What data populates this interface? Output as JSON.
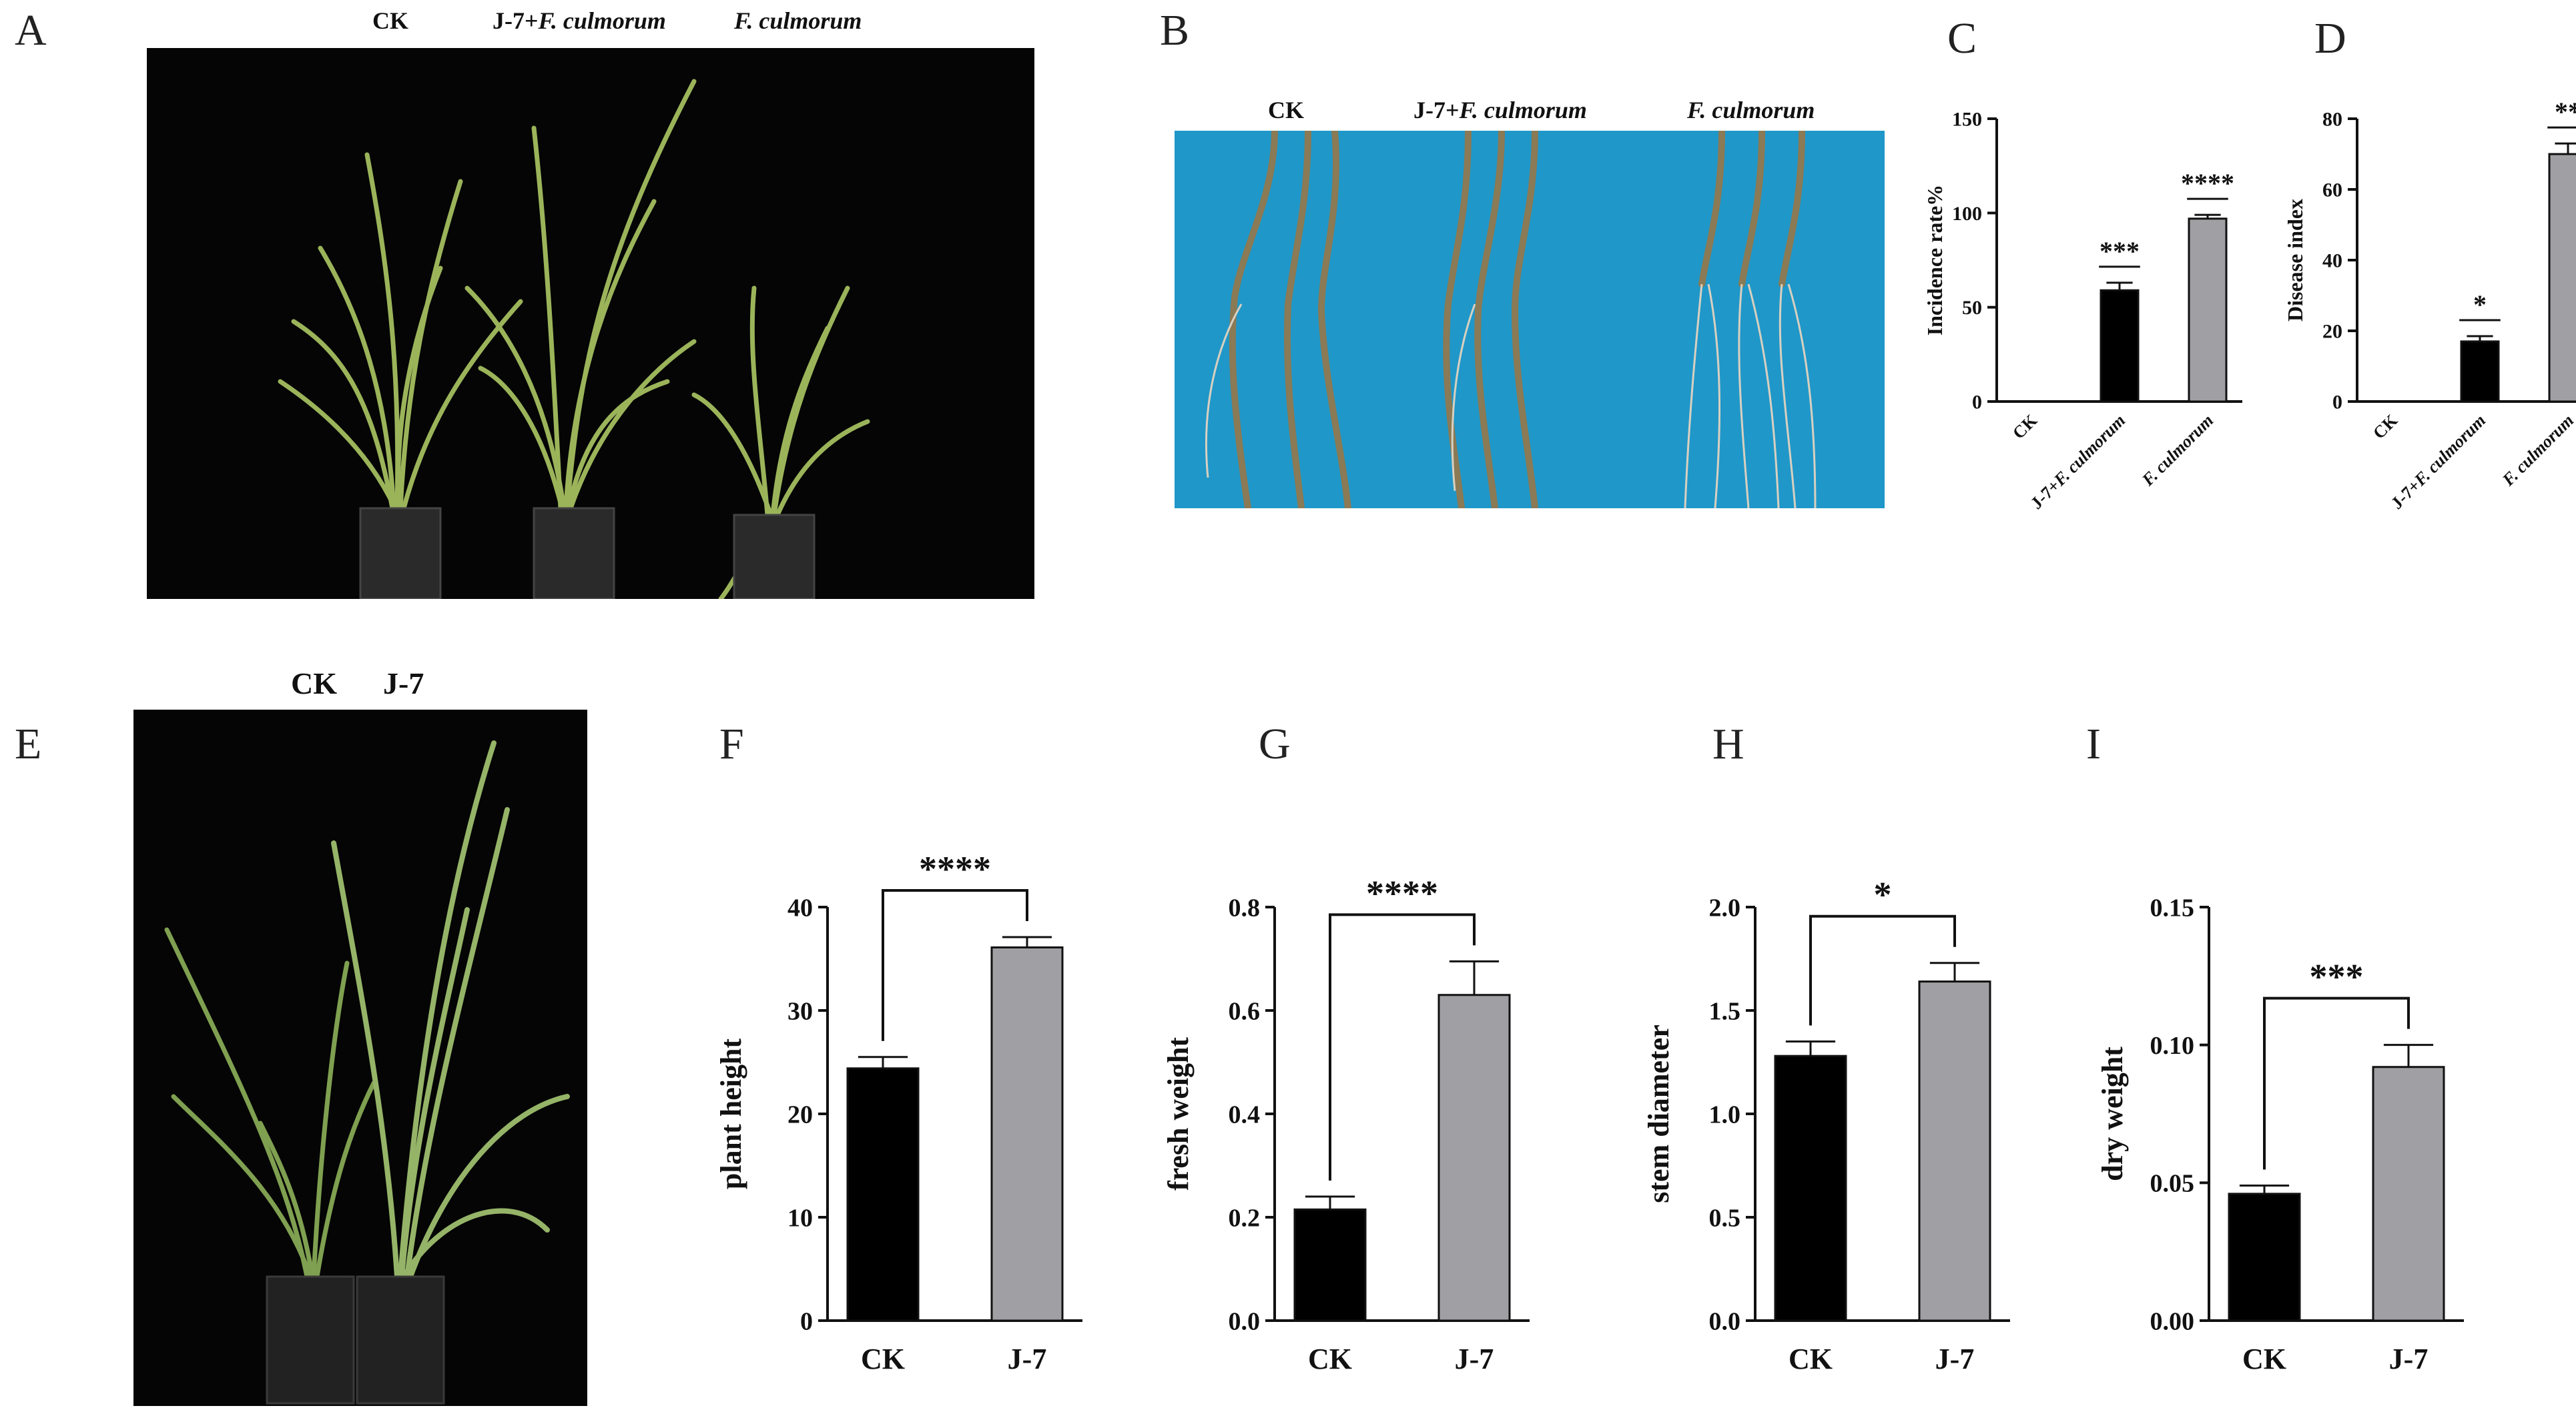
{
  "panels": {
    "A": "A",
    "B": "B",
    "C": "C",
    "D": "D",
    "E": "E",
    "F": "F",
    "G": "G",
    "H": "H",
    "I": "I"
  },
  "photoA": {
    "labels": [
      "CK",
      "J-7+",
      "F. culmorum",
      "F. culmorum"
    ]
  },
  "photoB": {
    "labels": [
      "CK",
      "J-7+",
      "F. culmorum",
      "F. culmorum"
    ]
  },
  "photoE": {
    "labels": [
      "CK",
      "J-7"
    ]
  },
  "colors": {
    "black_bar": "#000000",
    "gray_bar": "#a0a0a4",
    "photo_bg": "#050505",
    "roots_bg": "#1f97c9"
  },
  "chart_data": [
    {
      "id": "C",
      "type": "bar",
      "categories": [
        "CK",
        "J-7+F. culmorum",
        "F. culmorum"
      ],
      "values": [
        0,
        59,
        97
      ],
      "errors": [
        0,
        4,
        2
      ],
      "colors": [
        "#000000",
        "#000000",
        "#a0a0a4"
      ],
      "ylabel": "Incidence rate%",
      "ylim": [
        0,
        150
      ],
      "yticks": [
        0,
        50,
        100,
        150
      ],
      "significance": [
        "",
        "***",
        "****"
      ]
    },
    {
      "id": "D",
      "type": "bar",
      "categories": [
        "CK",
        "J-7+F. culmorum",
        "F. culmorum"
      ],
      "values": [
        0,
        17,
        70
      ],
      "errors": [
        0,
        1.5,
        3
      ],
      "colors": [
        "#000000",
        "#000000",
        "#a0a0a4"
      ],
      "ylabel": "Disease index",
      "ylim": [
        0,
        80
      ],
      "yticks": [
        0,
        20,
        40,
        60,
        80
      ],
      "significance": [
        "",
        "*",
        "**"
      ]
    },
    {
      "id": "F",
      "type": "bar",
      "categories": [
        "CK",
        "J-7"
      ],
      "values": [
        24.4,
        36.1
      ],
      "errors": [
        1.1,
        1.0
      ],
      "colors": [
        "#000000",
        "#a0a0a4"
      ],
      "ylabel": "plant height",
      "ylim": [
        0,
        40
      ],
      "yticks": [
        0,
        10,
        20,
        30,
        40
      ],
      "significance": "****"
    },
    {
      "id": "G",
      "type": "bar",
      "categories": [
        "CK",
        "J-7"
      ],
      "values": [
        0.215,
        0.63
      ],
      "errors": [
        0.025,
        0.065
      ],
      "colors": [
        "#000000",
        "#a0a0a4"
      ],
      "ylabel": "fresh weight",
      "ylim": [
        0,
        0.8
      ],
      "yticks": [
        "0.0",
        "0.2",
        "0.4",
        "0.6",
        "0.8"
      ],
      "significance": "****"
    },
    {
      "id": "H",
      "type": "bar",
      "categories": [
        "CK",
        "J-7"
      ],
      "values": [
        1.28,
        1.64
      ],
      "errors": [
        0.07,
        0.09
      ],
      "colors": [
        "#000000",
        "#a0a0a4"
      ],
      "ylabel": "stem diameter",
      "ylim": [
        0,
        2.0
      ],
      "yticks": [
        "0.0",
        "0.5",
        "1.0",
        "1.5",
        "2.0"
      ],
      "significance": "*"
    },
    {
      "id": "I",
      "type": "bar",
      "categories": [
        "CK",
        "J-7"
      ],
      "values": [
        0.046,
        0.092
      ],
      "errors": [
        0.003,
        0.008
      ],
      "colors": [
        "#000000",
        "#a0a0a4"
      ],
      "ylabel": "dry weight",
      "ylim": [
        0,
        0.15
      ],
      "yticks": [
        "0.00",
        "0.05",
        "0.10",
        "0.15"
      ],
      "significance": "***"
    }
  ]
}
